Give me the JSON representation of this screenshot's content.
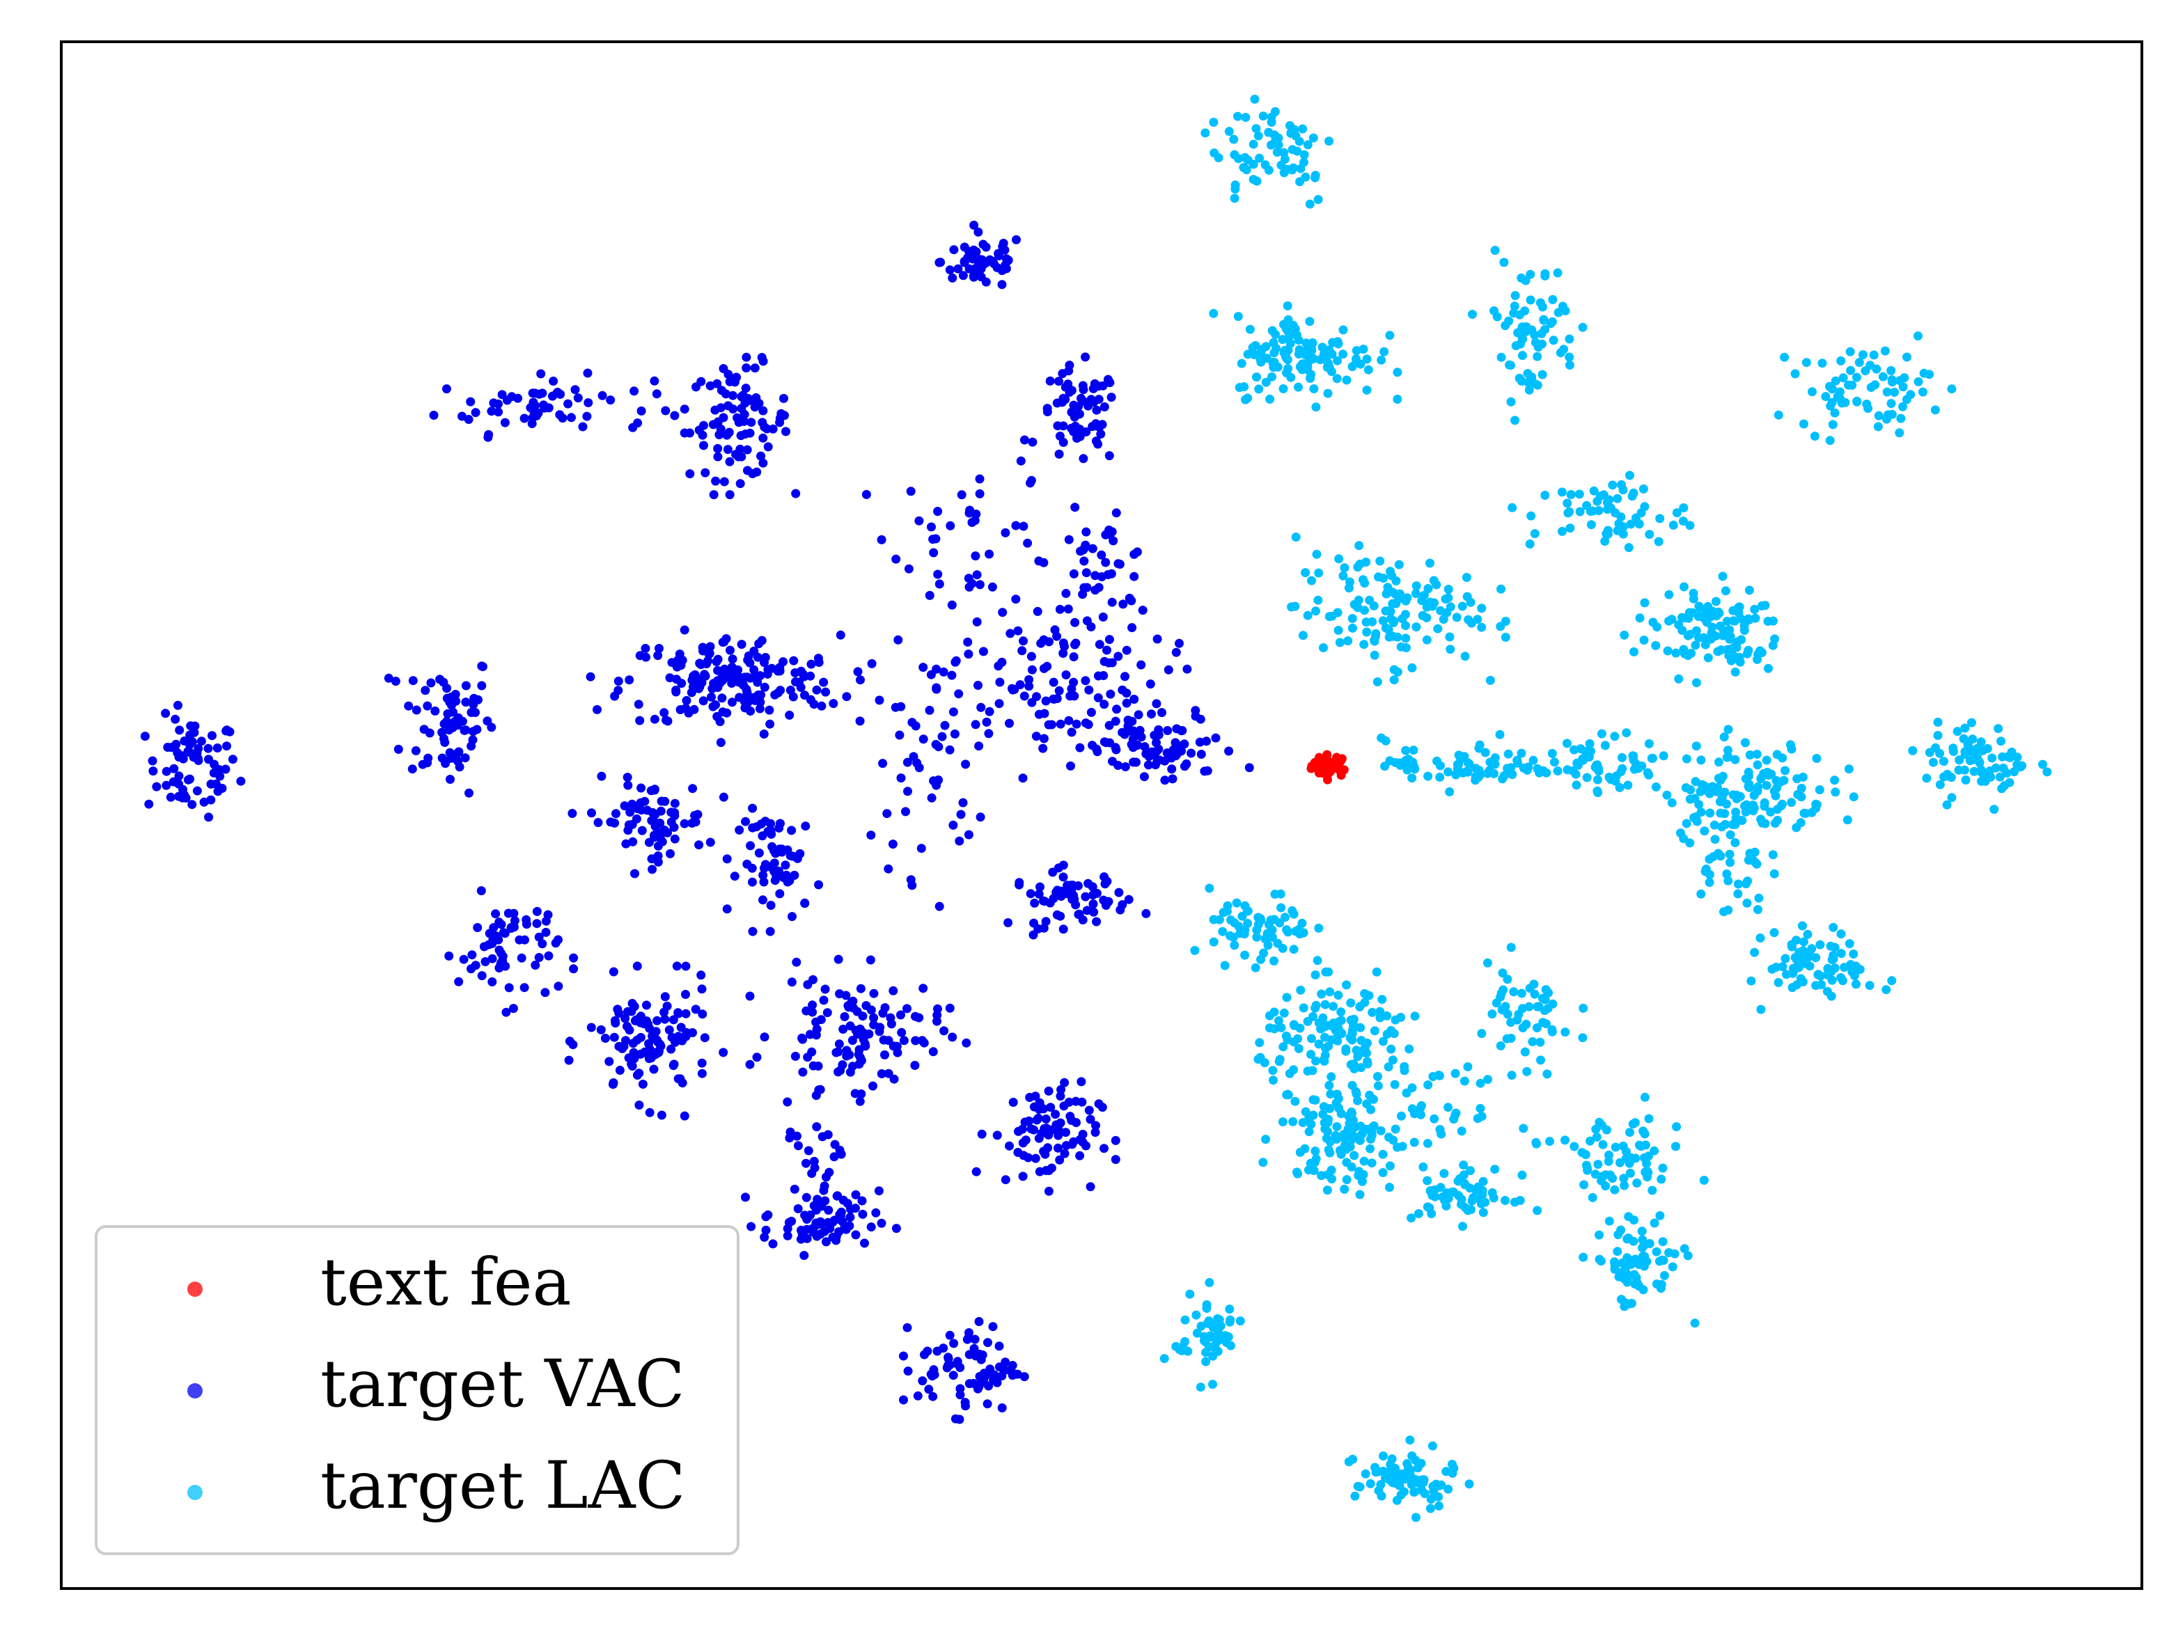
{
  "chart_data": {
    "type": "scatter",
    "title": "",
    "xlabel": "",
    "ylabel": "",
    "xlim": [
      0,
      100
    ],
    "ylim": [
      0,
      100
    ],
    "ticks_visible": false,
    "grid": false,
    "legend": {
      "placement": "lower-left",
      "entries": [
        {
          "label": "text fea",
          "color": "#ff0000"
        },
        {
          "label": "target VAC",
          "color": "#0000ee"
        },
        {
          "label": "target LAC",
          "color": "#00bfff"
        }
      ]
    },
    "series": [
      {
        "name": "text fea",
        "color": "#ff0000",
        "clusters": [
          {
            "cx": 61.0,
            "cy": 53.2,
            "sx": 0.45,
            "sy": 0.35,
            "n": 40
          }
        ]
      },
      {
        "name": "target VAC",
        "color": "#0000ee",
        "clusters": [
          {
            "cx": 6.3,
            "cy": 53.1,
            "sx": 1.1,
            "sy": 1.6,
            "n": 70
          },
          {
            "cx": 18.6,
            "cy": 56.2,
            "sx": 1.1,
            "sy": 2.3,
            "n": 70
          },
          {
            "cx": 23.2,
            "cy": 76.5,
            "sx": 2.6,
            "sy": 0.9,
            "n": 60
          },
          {
            "cx": 32.6,
            "cy": 75.4,
            "sx": 1.2,
            "sy": 1.8,
            "n": 90
          },
          {
            "cx": 44.3,
            "cy": 85.8,
            "sx": 1.0,
            "sy": 0.9,
            "n": 55
          },
          {
            "cx": 48.9,
            "cy": 75.7,
            "sx": 1.0,
            "sy": 1.6,
            "n": 65
          },
          {
            "cx": 43.9,
            "cy": 68.3,
            "sx": 2.0,
            "sy": 2.4,
            "n": 40
          },
          {
            "cx": 50.0,
            "cy": 66.2,
            "sx": 1.2,
            "sy": 1.4,
            "n": 40
          },
          {
            "cx": 32.2,
            "cy": 58.6,
            "sx": 2.6,
            "sy": 1.5,
            "n": 180
          },
          {
            "cx": 47.5,
            "cy": 58.4,
            "sx": 2.8,
            "sy": 2.7,
            "n": 130
          },
          {
            "cx": 53.0,
            "cy": 54.2,
            "sx": 1.8,
            "sy": 1.2,
            "n": 70
          },
          {
            "cx": 41.6,
            "cy": 53.2,
            "sx": 1.2,
            "sy": 3.5,
            "n": 45
          },
          {
            "cx": 28.2,
            "cy": 49.6,
            "sx": 1.4,
            "sy": 1.3,
            "n": 70
          },
          {
            "cx": 34.6,
            "cy": 46.9,
            "sx": 1.0,
            "sy": 1.7,
            "n": 60
          },
          {
            "cx": 48.5,
            "cy": 44.6,
            "sx": 1.4,
            "sy": 0.9,
            "n": 60
          },
          {
            "cx": 21.5,
            "cy": 41.3,
            "sx": 1.2,
            "sy": 1.7,
            "n": 65
          },
          {
            "cx": 28.3,
            "cy": 35.3,
            "sx": 1.5,
            "sy": 1.9,
            "n": 110
          },
          {
            "cx": 38.3,
            "cy": 36.0,
            "sx": 2.0,
            "sy": 1.8,
            "n": 110
          },
          {
            "cx": 36.5,
            "cy": 29.1,
            "sx": 0.9,
            "sy": 2.0,
            "n": 25
          },
          {
            "cx": 47.3,
            "cy": 29.4,
            "sx": 1.3,
            "sy": 1.6,
            "n": 85
          },
          {
            "cx": 36.5,
            "cy": 23.7,
            "sx": 1.4,
            "sy": 1.0,
            "n": 75
          },
          {
            "cx": 43.6,
            "cy": 14.3,
            "sx": 1.2,
            "sy": 1.4,
            "n": 75
          }
        ]
      },
      {
        "name": "target LAC",
        "color": "#00bfff",
        "clusters": [
          {
            "cx": 58.2,
            "cy": 93.1,
            "sx": 1.6,
            "sy": 1.9,
            "n": 65
          },
          {
            "cx": 59.8,
            "cy": 79.7,
            "sx": 1.7,
            "sy": 1.3,
            "n": 120
          },
          {
            "cx": 70.6,
            "cy": 81.5,
            "sx": 1.2,
            "sy": 2.3,
            "n": 70
          },
          {
            "cx": 86.7,
            "cy": 77.6,
            "sx": 1.6,
            "sy": 1.3,
            "n": 70
          },
          {
            "cx": 74.4,
            "cy": 69.5,
            "sx": 1.9,
            "sy": 1.2,
            "n": 60
          },
          {
            "cx": 63.7,
            "cy": 63.3,
            "sx": 2.2,
            "sy": 1.8,
            "n": 130
          },
          {
            "cx": 79.2,
            "cy": 61.8,
            "sx": 1.8,
            "sy": 1.4,
            "n": 110
          },
          {
            "cx": 67.8,
            "cy": 53.3,
            "sx": 2.1,
            "sy": 0.8,
            "n": 75
          },
          {
            "cx": 74.3,
            "cy": 53.3,
            "sx": 1.4,
            "sy": 0.9,
            "n": 50
          },
          {
            "cx": 81.0,
            "cy": 51.6,
            "sx": 2.0,
            "sy": 1.6,
            "n": 140
          },
          {
            "cx": 80.1,
            "cy": 46.3,
            "sx": 0.9,
            "sy": 1.3,
            "n": 30
          },
          {
            "cx": 92.1,
            "cy": 53.5,
            "sx": 1.3,
            "sy": 1.2,
            "n": 75
          },
          {
            "cx": 57.6,
            "cy": 42.4,
            "sx": 1.2,
            "sy": 1.3,
            "n": 65
          },
          {
            "cx": 61.6,
            "cy": 35.7,
            "sx": 2.0,
            "sy": 1.6,
            "n": 130
          },
          {
            "cx": 70.2,
            "cy": 36.8,
            "sx": 1.3,
            "sy": 1.8,
            "n": 50
          },
          {
            "cx": 61.4,
            "cy": 29.6,
            "sx": 1.4,
            "sy": 1.8,
            "n": 110
          },
          {
            "cx": 66.2,
            "cy": 30.9,
            "sx": 1.8,
            "sy": 1.2,
            "n": 40
          },
          {
            "cx": 67.4,
            "cy": 25.5,
            "sx": 1.2,
            "sy": 0.9,
            "n": 55
          },
          {
            "cx": 74.8,
            "cy": 27.6,
            "sx": 1.6,
            "sy": 1.6,
            "n": 70
          },
          {
            "cx": 75.7,
            "cy": 20.8,
            "sx": 1.1,
            "sy": 1.4,
            "n": 65
          },
          {
            "cx": 84.6,
            "cy": 40.3,
            "sx": 1.3,
            "sy": 1.1,
            "n": 75
          },
          {
            "cx": 55.1,
            "cy": 16.4,
            "sx": 0.8,
            "sy": 1.3,
            "n": 55
          },
          {
            "cx": 64.6,
            "cy": 7.0,
            "sx": 1.2,
            "sy": 1.0,
            "n": 75
          }
        ]
      }
    ]
  }
}
